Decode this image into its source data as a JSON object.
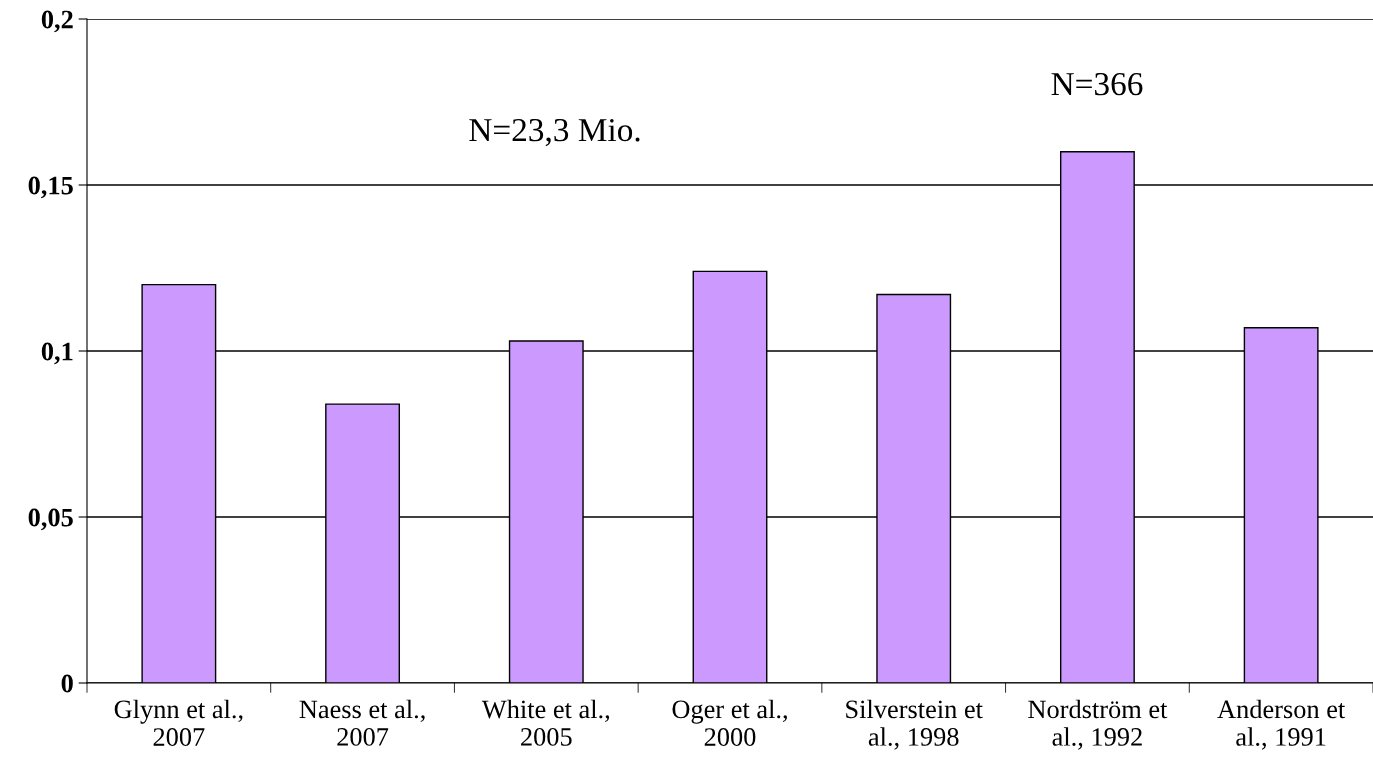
{
  "chart_data": {
    "type": "bar",
    "categories": [
      "Glynn et al.,\n2007",
      "Naess et al.,\n2007",
      "White et al.,\n2005",
      "Oger et al.,\n2000",
      "Silverstein et\nal., 1998",
      "Nordström et\nal., 1992",
      "Anderson et\nal., 1991"
    ],
    "values": [
      0.12,
      0.084,
      0.103,
      0.124,
      0.117,
      0.16,
      0.107
    ],
    "color": "#cc99ff",
    "ylim": [
      0,
      0.2
    ],
    "yticks": [
      {
        "value": 0,
        "label": "0"
      },
      {
        "value": 0.05,
        "label": "0,05"
      },
      {
        "value": 0.1,
        "label": "0,1"
      },
      {
        "value": 0.15,
        "label": "0,15"
      },
      {
        "value": 0.2,
        "label": "0,2"
      }
    ],
    "grid": "y",
    "annotations": [
      "N=23,3 Mio.",
      "N=366"
    ]
  }
}
